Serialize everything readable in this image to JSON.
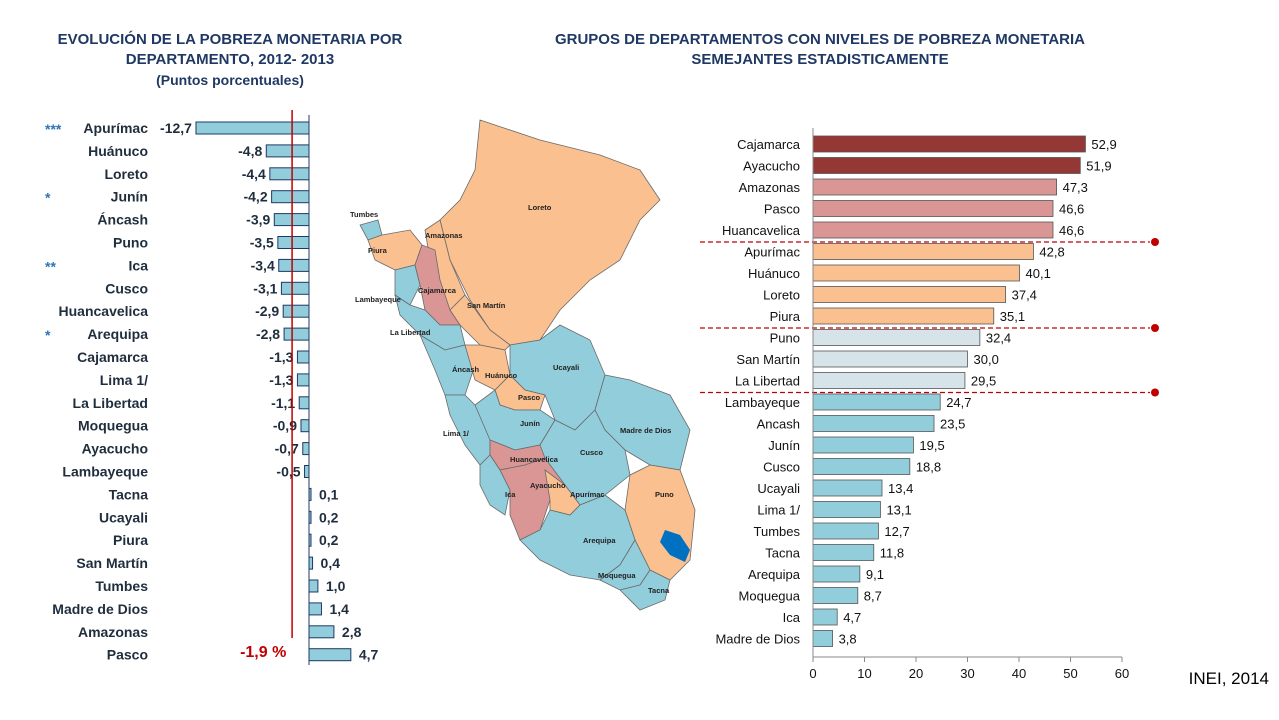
{
  "left_title": {
    "line1": "EVOLUCIÓN DE LA POBREZA MONETARIA POR",
    "line2": "DEPARTAMENTO, 2012- 2013",
    "line3": "(Puntos porcentuales)"
  },
  "right_title": {
    "line1": "GRUPOS DE DEPARTAMENTOS CON NIVELES DE POBREZA MONETARIA",
    "line2": "SEMEJANTES ESTADISTICAMENTE"
  },
  "credit": "INEI, 2014",
  "colors": {
    "bar_blue": "#92cddc",
    "bar_border": "#1f3864",
    "red_line": "#c00000",
    "group1": "#953735",
    "group2": "#d99694",
    "group3": "#fac090",
    "group4": "#d6e3e8",
    "group5": "#92cddc",
    "star": "#2e75b6",
    "map_blue": "#92cddc",
    "map_orange": "#fac090",
    "map_pink": "#d99694",
    "lake": "#0070c0"
  },
  "map_labels": [
    "Tumbes",
    "Piura",
    "Amazonas",
    "Loreto",
    "Lambayeque",
    "Cajamarca",
    "San Martín",
    "La Libertad",
    "Áncash",
    "Huánuco",
    "Ucayali",
    "Pasco",
    "Lima 1/",
    "Junín",
    "Madre de Dios",
    "Cusco",
    "Huancavelica",
    "Ica",
    "Ayacucho",
    "Apurímac",
    "Puno",
    "Arequipa",
    "Moquegua",
    "Tacna"
  ],
  "chart_data": [
    {
      "type": "bar",
      "orientation": "horizontal",
      "title": "EVOLUCIÓN DE LA POBREZA MONETARIA POR DEPARTAMENTO, 2012- 2013",
      "subtitle": "(Puntos porcentuales)",
      "categories": [
        "Apurímac",
        "Huánuco",
        "Loreto",
        "Junín",
        "Áncash",
        "Puno",
        "Ica",
        "Cusco",
        "Huancavelica",
        "Arequipa",
        "Cajamarca",
        "Lima 1/",
        "La Libertad",
        "Moquegua",
        "Ayacucho",
        "Lambayeque",
        "Tacna",
        "Ucayali",
        "Piura",
        "San Martín",
        "Tumbes",
        "Madre de Dios",
        "Amazonas",
        "Pasco"
      ],
      "values": [
        -12.7,
        -4.8,
        -4.4,
        -4.2,
        -3.9,
        -3.5,
        -3.4,
        -3.1,
        -2.9,
        -2.8,
        -1.3,
        -1.3,
        -1.1,
        -0.9,
        -0.7,
        -0.5,
        0.1,
        0.2,
        0.2,
        0.4,
        1.0,
        1.4,
        2.8,
        4.7
      ],
      "value_labels": [
        "-12,7",
        "-4,8",
        "-4,4",
        "-4,2",
        "-3,9",
        "-3,5",
        "-3,4",
        "-3,1",
        "-2,9",
        "-2,8",
        "-1,3",
        "-1,3",
        "-1,1",
        "-0,9",
        "-0,7",
        "-0,5",
        "0,1",
        "0,2",
        "0,2",
        "0,4",
        "1,0",
        "1,4",
        "2,8",
        "4,7"
      ],
      "significance": [
        "***",
        "",
        "",
        "*",
        "",
        "",
        "**",
        "",
        "",
        "*",
        "",
        "",
        "",
        "",
        "",
        "",
        "",
        "",
        "",
        "",
        "",
        "",
        "",
        ""
      ],
      "average": {
        "value": -1.9,
        "label": "-1,9 %"
      },
      "xlim": [
        -14,
        5.5
      ]
    },
    {
      "type": "bar",
      "orientation": "horizontal",
      "title": "GRUPOS DE DEPARTAMENTOS CON NIVELES DE POBREZA MONETARIA SEMEJANTES ESTADISTICAMENTE",
      "categories": [
        "Cajamarca",
        "Ayacucho",
        "Amazonas",
        "Pasco",
        "Huancavelica",
        "Apurímac",
        "Huánuco",
        "Loreto",
        "Piura",
        "Puno",
        "San Martín",
        "La Libertad",
        "Lambayeque",
        "Ancash",
        "Junín",
        "Cusco",
        "Ucayali",
        "Lima 1/",
        "Tumbes",
        "Tacna",
        "Arequipa",
        "Moquegua",
        "Ica",
        "Madre de Dios"
      ],
      "values": [
        52.9,
        51.9,
        47.3,
        46.6,
        46.6,
        42.8,
        40.1,
        37.4,
        35.1,
        32.4,
        30.0,
        29.5,
        24.7,
        23.5,
        19.5,
        18.8,
        13.4,
        13.1,
        12.7,
        11.8,
        9.1,
        8.7,
        4.7,
        3.8
      ],
      "value_labels": [
        "52,9",
        "51,9",
        "47,3",
        "46,6",
        "46,6",
        "42,8",
        "40,1",
        "37,4",
        "35,1",
        "32,4",
        "30,0",
        "29,5",
        "24,7",
        "23,5",
        "19,5",
        "18,8",
        "13,4",
        "13,1",
        "12,7",
        "11,8",
        "9,1",
        "8,7",
        "4,7",
        "3,8"
      ],
      "groups": [
        1,
        1,
        2,
        2,
        2,
        3,
        3,
        3,
        3,
        4,
        4,
        4,
        5,
        5,
        5,
        5,
        5,
        5,
        5,
        5,
        5,
        5,
        5,
        5
      ],
      "xlim": [
        0,
        60
      ],
      "xticks": [
        "0",
        "10",
        "20",
        "30",
        "40",
        "50",
        "60"
      ],
      "group_separators_after": [
        5,
        9,
        12
      ]
    }
  ]
}
